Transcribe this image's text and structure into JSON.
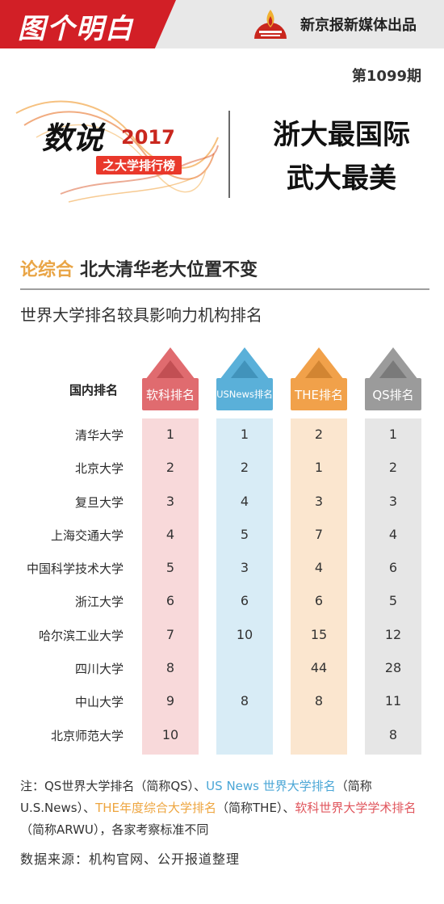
{
  "header": {
    "logo_text": "图个明白",
    "publisher": "新京报新媒体出品",
    "issue": "第1099期"
  },
  "title": {
    "shuo": "数说",
    "year": "2017",
    "ranking": "之大学排行榜",
    "headline_line1": "浙大最国际",
    "headline_line2": "武大最美"
  },
  "section": {
    "accent": "论综合",
    "heading": "北大清华老大位置不变",
    "subtitle": "世界大学排名较具影响力机构排名"
  },
  "table": {
    "row_header": "国内排名",
    "columns": [
      "软科排名",
      "USNews排名",
      "THE排名",
      "QS排名"
    ],
    "column_colors": [
      "#e06b6f",
      "#5ab0d9",
      "#f1a14a",
      "#9b9b9b"
    ],
    "rows": [
      {
        "name": "清华大学",
        "ranks": [
          "1",
          "1",
          "2",
          "1"
        ]
      },
      {
        "name": "北京大学",
        "ranks": [
          "2",
          "2",
          "1",
          "2"
        ]
      },
      {
        "name": "复旦大学",
        "ranks": [
          "3",
          "4",
          "3",
          "3"
        ]
      },
      {
        "name": "上海交通大学",
        "ranks": [
          "4",
          "5",
          "7",
          "4"
        ]
      },
      {
        "name": "中国科学技术大学",
        "ranks": [
          "5",
          "3",
          "4",
          "6"
        ]
      },
      {
        "name": "浙江大学",
        "ranks": [
          "6",
          "6",
          "6",
          "5"
        ]
      },
      {
        "name": "哈尔滨工业大学",
        "ranks": [
          "7",
          "10",
          "15",
          "12"
        ]
      },
      {
        "name": "四川大学",
        "ranks": [
          "8",
          "",
          "44",
          "28"
        ]
      },
      {
        "name": "中山大学",
        "ranks": [
          "9",
          "8",
          "8",
          "11"
        ]
      },
      {
        "name": "北京师范大学",
        "ranks": [
          "10",
          "",
          "",
          "8"
        ]
      }
    ]
  },
  "notes": {
    "p1": "注：QS世界大学排名（简称QS）、",
    "p2_blue": "US News 世界大学排名",
    "p3": "（简称U.S.News）、",
    "p4_orange": "THE年度综合大学排名",
    "p5": "（简称THE）、",
    "p6_red": "软科世界大学学术排名",
    "p7": "（简称ARWU），各家考察标准不同",
    "source": "数据来源：机构官网、公开报道整理"
  }
}
